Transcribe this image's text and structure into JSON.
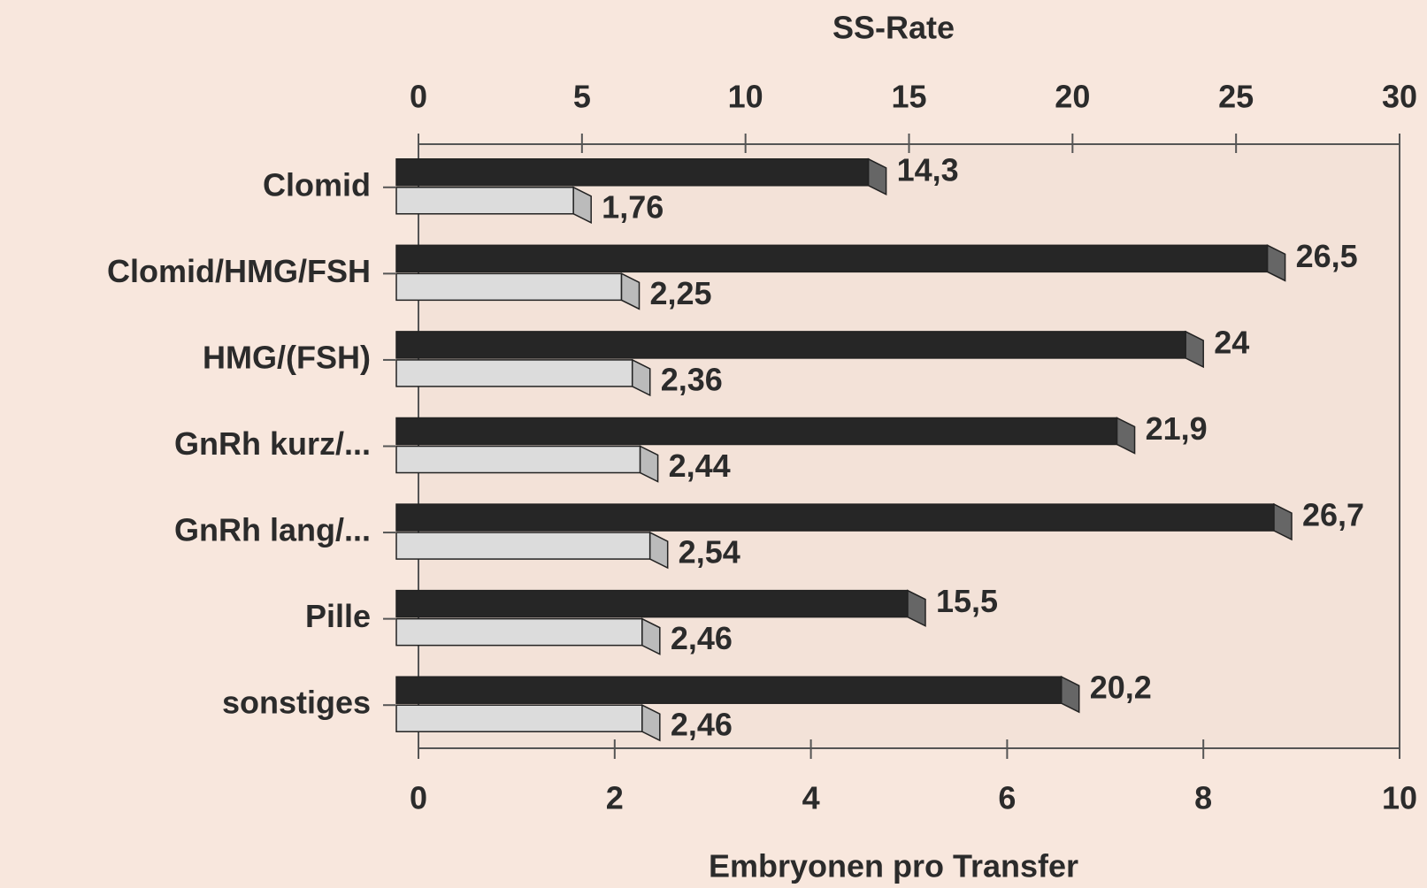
{
  "chart_data": {
    "type": "bar",
    "orientation": "horizontal",
    "x2_label": "SS-Rate",
    "x_label": "Embryonen pro Transfer",
    "categories": [
      "Clomid",
      "Clomid/HMG/FSH",
      "HMG/(FSH)",
      "GnRh kurz/...",
      "GnRh lang/...",
      "Pille",
      "sonstiges"
    ],
    "series": [
      {
        "color": "#262626",
        "axis": "x2",
        "values": [
          14.3,
          26.5,
          24,
          21.9,
          26.7,
          15.5,
          20.2
        ],
        "value_labels": [
          "14,3",
          "26,5",
          "24",
          "21,9",
          "26,7",
          "15,5",
          "20,2"
        ]
      },
      {
        "color": "#dcdcdc",
        "axis": "x",
        "values": [
          1.76,
          2.25,
          2.36,
          2.44,
          2.54,
          2.46,
          2.46
        ],
        "value_labels": [
          "1,76",
          "2,25",
          "2,36",
          "2,44",
          "2,54",
          "2,46",
          "2,46"
        ]
      }
    ],
    "x2lim": [
      0,
      30
    ],
    "x2ticks": [
      0,
      5,
      10,
      15,
      20,
      25,
      30
    ],
    "xlim": [
      0,
      10
    ],
    "xticks": [
      0,
      2,
      4,
      6,
      8,
      10
    ],
    "grid": false
  }
}
